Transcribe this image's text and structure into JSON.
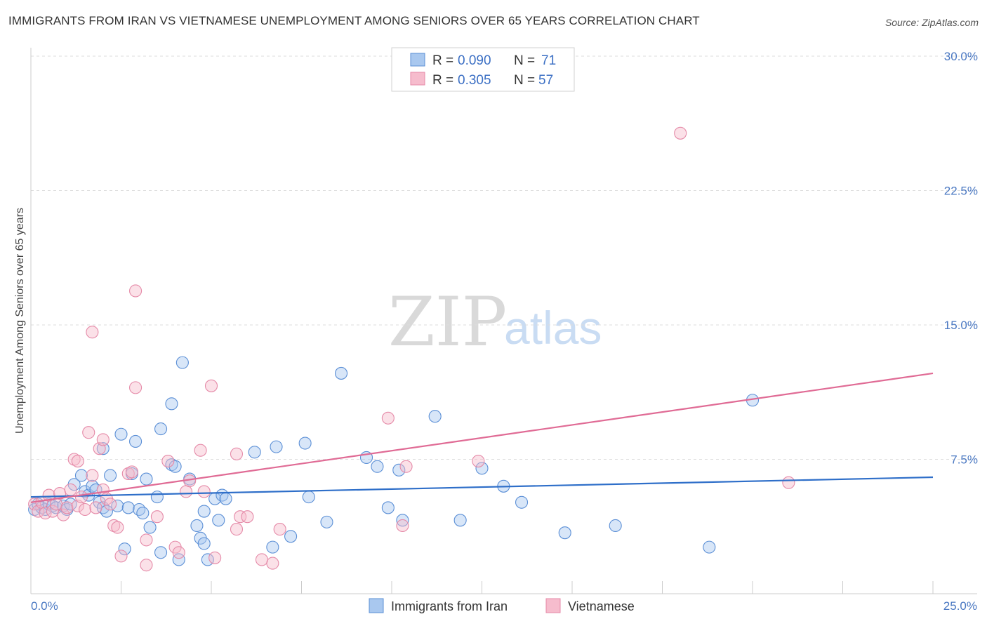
{
  "header": {
    "title": "IMMIGRANTS FROM IRAN VS VIETNAMESE UNEMPLOYMENT AMONG SENIORS OVER 65 YEARS CORRELATION CHART",
    "source": "Source: ZipAtlas.com"
  },
  "watermark": {
    "zip": "ZIP",
    "atlas": "atlas"
  },
  "legend": {
    "series1": {
      "r_label": "R =",
      "r_value": "0.090",
      "n_label": "N =",
      "n_value": "71"
    },
    "series2": {
      "r_label": "R =",
      "r_value": "0.305",
      "n_label": "N =",
      "n_value": "57"
    }
  },
  "colors": {
    "iran_fill": "#a9c8ef",
    "iran_stroke": "#5b8fd6",
    "iran_line": "#2f6fc9",
    "viet_fill": "#f6bccd",
    "viet_stroke": "#e58aa8",
    "viet_line": "#e06b95",
    "grid": "#dddddd",
    "axis_text": "#4a78c2"
  },
  "chart_data": {
    "type": "scatter",
    "title": "IMMIGRANTS FROM IRAN VS VIETNAMESE UNEMPLOYMENT AMONG SENIORS OVER 65 YEARS CORRELATION CHART",
    "xlabel": "",
    "ylabel": "Unemployment Among Seniors over 65 years",
    "xlim": [
      0,
      25
    ],
    "ylim": [
      0,
      30
    ],
    "x_tick_labels": [
      "0.0%",
      "25.0%"
    ],
    "y_ticks": [
      7.5,
      15.0,
      22.5,
      30.0
    ],
    "y_tick_labels": [
      "7.5%",
      "15.0%",
      "22.5%",
      "30.0%"
    ],
    "grid": true,
    "legend_position": "top-center",
    "series": [
      {
        "name": "Immigrants from Iran",
        "r": 0.09,
        "n": 71,
        "trend": [
          [
            0,
            5.4
          ],
          [
            25,
            6.5
          ]
        ],
        "points": [
          [
            0.1,
            4.7
          ],
          [
            0.2,
            5.0
          ],
          [
            0.3,
            4.8
          ],
          [
            0.4,
            4.7
          ],
          [
            0.5,
            5.0
          ],
          [
            0.6,
            4.9
          ],
          [
            0.7,
            4.8
          ],
          [
            0.9,
            4.9
          ],
          [
            1.0,
            4.7
          ],
          [
            1.1,
            5.0
          ],
          [
            1.2,
            6.1
          ],
          [
            1.4,
            6.6
          ],
          [
            1.5,
            5.7
          ],
          [
            1.6,
            5.5
          ],
          [
            1.7,
            6.0
          ],
          [
            1.8,
            5.8
          ],
          [
            1.9,
            5.1
          ],
          [
            2.0,
            4.8
          ],
          [
            2.0,
            8.1
          ],
          [
            2.1,
            4.6
          ],
          [
            2.2,
            6.6
          ],
          [
            2.4,
            4.9
          ],
          [
            2.5,
            8.9
          ],
          [
            2.6,
            2.5
          ],
          [
            2.8,
            6.7
          ],
          [
            2.7,
            4.8
          ],
          [
            2.9,
            8.5
          ],
          [
            3.0,
            4.7
          ],
          [
            3.1,
            4.5
          ],
          [
            3.2,
            6.4
          ],
          [
            3.3,
            3.7
          ],
          [
            3.5,
            5.4
          ],
          [
            3.6,
            2.3
          ],
          [
            3.6,
            9.2
          ],
          [
            3.9,
            10.6
          ],
          [
            3.9,
            7.2
          ],
          [
            4.0,
            7.1
          ],
          [
            4.1,
            1.9
          ],
          [
            4.2,
            12.9
          ],
          [
            4.4,
            6.4
          ],
          [
            4.6,
            3.8
          ],
          [
            4.7,
            3.1
          ],
          [
            4.8,
            4.6
          ],
          [
            4.8,
            2.8
          ],
          [
            4.9,
            1.9
          ],
          [
            5.1,
            5.3
          ],
          [
            5.2,
            4.1
          ],
          [
            5.3,
            5.5
          ],
          [
            5.4,
            5.3
          ],
          [
            6.2,
            7.9
          ],
          [
            6.8,
            8.2
          ],
          [
            6.7,
            2.6
          ],
          [
            7.2,
            3.2
          ],
          [
            7.6,
            8.4
          ],
          [
            7.7,
            5.4
          ],
          [
            8.2,
            4.0
          ],
          [
            8.6,
            12.3
          ],
          [
            9.3,
            7.6
          ],
          [
            9.6,
            7.1
          ],
          [
            9.9,
            4.8
          ],
          [
            10.2,
            6.9
          ],
          [
            10.3,
            4.1
          ],
          [
            11.2,
            9.9
          ],
          [
            11.9,
            4.1
          ],
          [
            12.5,
            7.0
          ],
          [
            13.1,
            6.0
          ],
          [
            13.6,
            5.1
          ],
          [
            14.8,
            3.4
          ],
          [
            16.2,
            3.8
          ],
          [
            18.8,
            2.6
          ],
          [
            20.0,
            10.8
          ]
        ]
      },
      {
        "name": "Vietnamese",
        "r": 0.305,
        "n": 57,
        "trend": [
          [
            0,
            5.1
          ],
          [
            25,
            12.3
          ]
        ],
        "points": [
          [
            0.1,
            5.0
          ],
          [
            0.2,
            4.6
          ],
          [
            0.3,
            5.1
          ],
          [
            0.4,
            4.5
          ],
          [
            0.5,
            5.5
          ],
          [
            0.6,
            4.6
          ],
          [
            0.7,
            5.0
          ],
          [
            0.8,
            5.6
          ],
          [
            0.9,
            4.4
          ],
          [
            1.0,
            4.8
          ],
          [
            1.1,
            5.8
          ],
          [
            1.2,
            7.5
          ],
          [
            1.3,
            4.9
          ],
          [
            1.3,
            7.4
          ],
          [
            1.4,
            5.4
          ],
          [
            1.5,
            4.7
          ],
          [
            1.6,
            9.0
          ],
          [
            1.7,
            6.6
          ],
          [
            1.7,
            14.6
          ],
          [
            1.8,
            4.8
          ],
          [
            1.9,
            8.1
          ],
          [
            2.0,
            5.8
          ],
          [
            2.0,
            8.6
          ],
          [
            2.1,
            5.3
          ],
          [
            2.2,
            5.0
          ],
          [
            2.3,
            3.8
          ],
          [
            2.4,
            3.7
          ],
          [
            2.5,
            2.1
          ],
          [
            2.7,
            6.7
          ],
          [
            2.8,
            6.8
          ],
          [
            2.9,
            11.5
          ],
          [
            2.9,
            16.9
          ],
          [
            3.2,
            1.6
          ],
          [
            3.2,
            3.0
          ],
          [
            3.5,
            4.3
          ],
          [
            3.8,
            7.4
          ],
          [
            4.0,
            2.6
          ],
          [
            4.1,
            2.3
          ],
          [
            4.3,
            5.7
          ],
          [
            4.4,
            6.3
          ],
          [
            4.7,
            8.0
          ],
          [
            4.8,
            5.7
          ],
          [
            5.0,
            11.6
          ],
          [
            5.1,
            2.0
          ],
          [
            5.7,
            7.8
          ],
          [
            5.8,
            4.3
          ],
          [
            5.7,
            3.6
          ],
          [
            6.0,
            4.3
          ],
          [
            6.4,
            1.9
          ],
          [
            6.7,
            1.7
          ],
          [
            6.9,
            3.6
          ],
          [
            9.9,
            9.8
          ],
          [
            10.3,
            3.8
          ],
          [
            10.4,
            7.1
          ],
          [
            12.4,
            7.4
          ],
          [
            18.0,
            25.7
          ],
          [
            21.0,
            6.2
          ]
        ]
      }
    ]
  },
  "bottom_legend": {
    "item1": "Immigrants from Iran",
    "item2": "Vietnamese"
  }
}
